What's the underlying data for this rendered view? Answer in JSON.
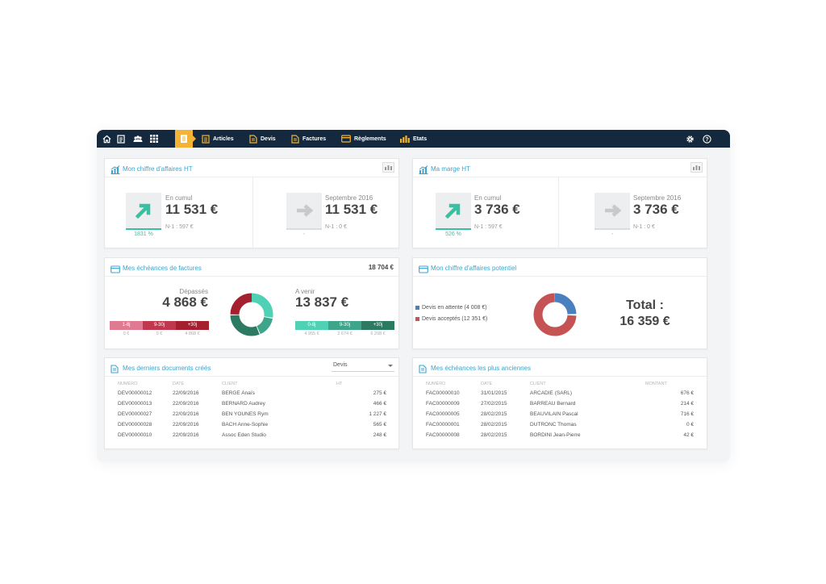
{
  "nav": {
    "items": [
      {
        "label": "Articles"
      },
      {
        "label": "Devis"
      },
      {
        "label": "Factures"
      },
      {
        "label": "Règlements"
      },
      {
        "label": "Etats"
      }
    ]
  },
  "ca": {
    "title": "Mon chiffre d'affaires HT",
    "cumul_label": "En cumul",
    "cumul_value": "11 531 €",
    "cumul_pct": "1831 %",
    "cumul_n1": "N-1 : 597 €",
    "month_label": "Septembre 2016",
    "month_value": "11 531 €",
    "month_pct": "-",
    "month_n1": "N-1 : 0 €"
  },
  "marge": {
    "title": "Ma marge HT",
    "cumul_label": "En cumul",
    "cumul_value": "3 736 €",
    "cumul_pct": "526 %",
    "cumul_n1": "N-1 : 597 €",
    "month_label": "Septembre 2016",
    "month_value": "3 736 €",
    "month_pct": "-",
    "month_n1": "N-1 : 0 €"
  },
  "echeances": {
    "title": "Mes échéances de factures",
    "total": "18 704 €",
    "overdue_label": "Dépassés",
    "overdue_value": "4 868 €",
    "upcoming_label": "A venir",
    "upcoming_value": "13 837 €",
    "overdue_buckets": [
      {
        "label": "1-8j",
        "value": "0 €",
        "color": "#e07a93"
      },
      {
        "label": "9-30j",
        "value": "0 €",
        "color": "#c0384e"
      },
      {
        "label": "+30j",
        "value": "4 868 €",
        "color": "#a4202f"
      }
    ],
    "upcoming_buckets": [
      {
        "label": "0-8j",
        "value": "4 955 €",
        "color": "#4fd1b5"
      },
      {
        "label": "9-30j",
        "value": "2 674 €",
        "color": "#3ea48a"
      },
      {
        "label": "+30j",
        "value": "6 208 €",
        "color": "#2d7a62"
      }
    ]
  },
  "potentiel": {
    "title": "Mon chiffre d'affaires potentiel",
    "legend": [
      {
        "label": "Devis en attente (4 008 €)",
        "color": "#4a7fc0",
        "value": 4008
      },
      {
        "label": "Devis acceptés (12 351 €)",
        "color": "#c55353",
        "value": 12351
      }
    ],
    "total_label": "Total :",
    "total_value": "16 359 €"
  },
  "docs": {
    "title": "Mes derniers documents créés",
    "select_value": "Devis",
    "columns": [
      "NUMÉRO",
      "DATE",
      "CLIENT",
      "HT"
    ],
    "rows": [
      [
        "DEV00000012",
        "22/09/2016",
        "BERGE Anaïs",
        "275 €"
      ],
      [
        "DEV00000013",
        "22/09/2016",
        "BERNARD Audrey",
        "466 €"
      ],
      [
        "DEV00000027",
        "22/09/2016",
        "BEN YOUNES Rym",
        "1 227 €"
      ],
      [
        "DEV00000028",
        "22/09/2016",
        "BACH Anne-Sophie",
        "565 €"
      ],
      [
        "DEV00000010",
        "22/09/2016",
        "Assoc Eden Studio",
        "248 €"
      ]
    ]
  },
  "anciennes": {
    "title": "Mes échéances les plus anciennes",
    "columns": [
      "NUMÉRO",
      "DATE",
      "CLIENT",
      "MONTANT"
    ],
    "rows": [
      [
        "FAC00000010",
        "31/01/2015",
        "ARCADIE (SARL)",
        "676 €"
      ],
      [
        "FAC00000009",
        "27/02/2015",
        "BARREAU Bernard",
        "214 €"
      ],
      [
        "FAC00000005",
        "28/02/2015",
        "BEAUVILAIN Pascal",
        "716 €"
      ],
      [
        "FAC00000001",
        "28/02/2015",
        "DUTRONC Thomas",
        "0 €"
      ],
      [
        "FAC00000008",
        "28/02/2015",
        "BORDINI Jean-Pierre",
        "42 €"
      ]
    ]
  },
  "colors": {
    "navbar": "#14293d",
    "accent": "#3ca4cc",
    "active": "#f5b335",
    "up": "#3bbfa3"
  }
}
